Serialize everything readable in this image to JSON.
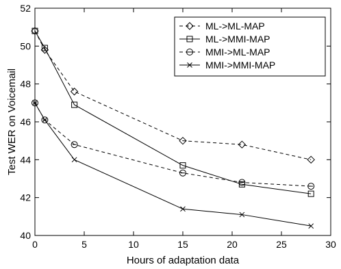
{
  "chart_data": {
    "type": "line",
    "xlabel": "Hours of adaptation data",
    "ylabel": "Test WER on Voicemail",
    "xlim": [
      0,
      30
    ],
    "ylim": [
      40,
      52
    ],
    "xticks": [
      0,
      5,
      10,
      15,
      20,
      25,
      30
    ],
    "yticks": [
      40,
      42,
      44,
      46,
      48,
      50,
      52
    ],
    "grid": false,
    "legend_position": "top-right",
    "series": [
      {
        "name": "ML->ML-MAP",
        "line_style": "dashed",
        "marker": "diamond",
        "x": [
          0,
          1,
          4,
          15,
          21,
          28
        ],
        "y": [
          50.8,
          49.8,
          47.6,
          45.0,
          44.8,
          44.0
        ]
      },
      {
        "name": "ML->MMI-MAP",
        "line_style": "solid",
        "marker": "square",
        "x": [
          0,
          1,
          4,
          15,
          21,
          28
        ],
        "y": [
          50.8,
          49.9,
          46.9,
          43.7,
          42.7,
          42.2
        ]
      },
      {
        "name": "MMI->ML-MAP",
        "line_style": "dashed",
        "marker": "circle",
        "x": [
          0,
          1,
          4,
          15,
          21,
          28
        ],
        "y": [
          47.0,
          46.1,
          44.8,
          43.3,
          42.8,
          42.6
        ]
      },
      {
        "name": "MMI->MMI-MAP",
        "line_style": "solid",
        "marker": "x",
        "x": [
          0,
          1,
          4,
          15,
          21,
          28
        ],
        "y": [
          47.0,
          46.1,
          44.0,
          41.4,
          41.1,
          40.5
        ]
      }
    ]
  }
}
